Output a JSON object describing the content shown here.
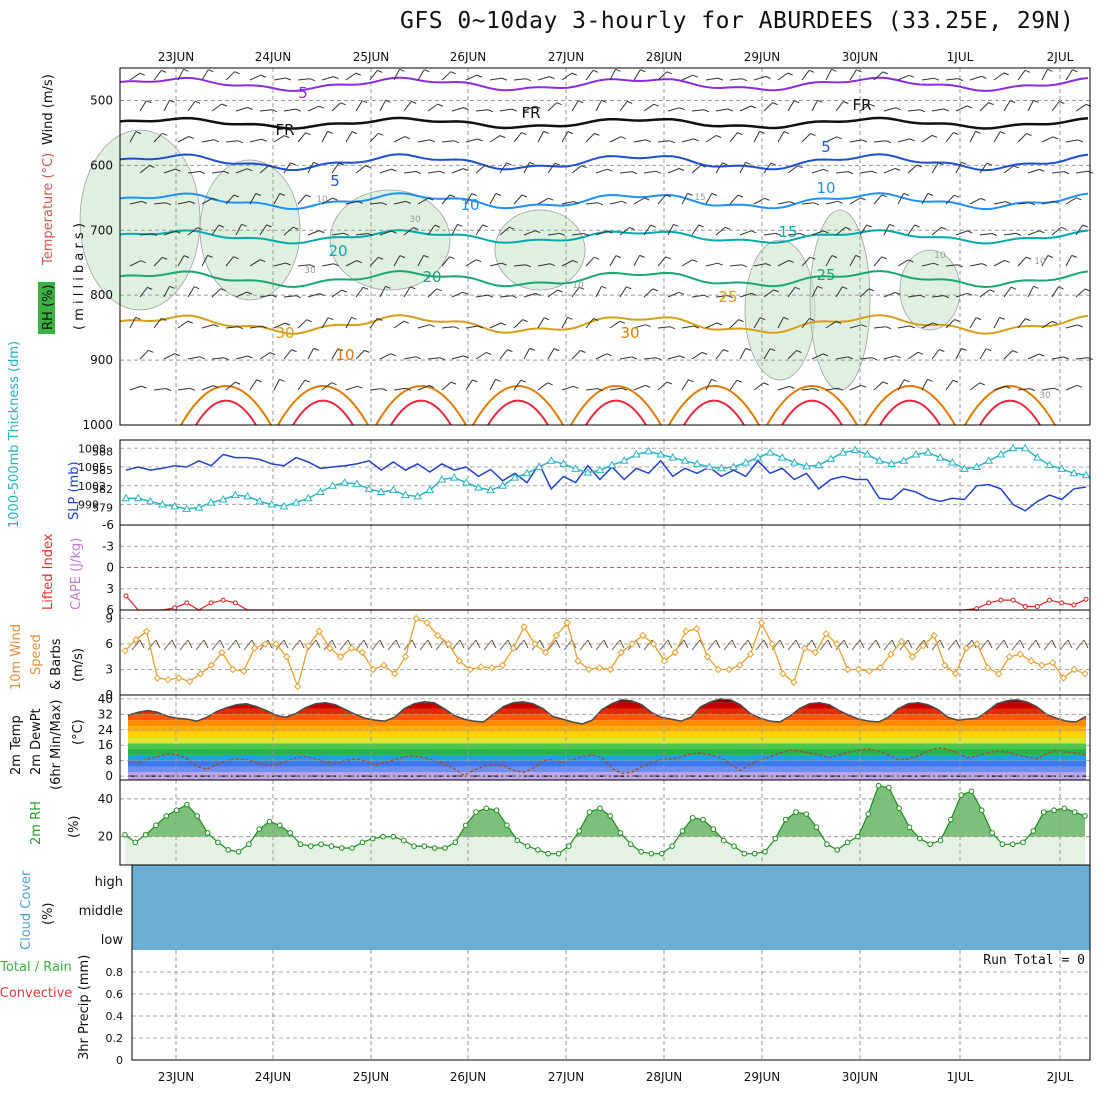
{
  "title": "GFS 0~10day 3-hourly for ABURDEES (33.25E, 29N)",
  "chart_data": [
    {
      "type": "line",
      "panel": "upper-air",
      "x_labels": [
        "23JUN",
        "24JUN",
        "25JUN",
        "26JUN",
        "27JUN",
        "28JUN",
        "29JUN",
        "30JUN",
        "1JUL",
        "2JUL"
      ],
      "ylabel_parts": [
        "RH (%)",
        "Temperature (°C)",
        "Wind (m/s)",
        "( m i l l i b a r s )"
      ],
      "ylim": [
        1000,
        450
      ],
      "y_ticks": [
        500,
        600,
        700,
        800,
        900,
        1000
      ],
      "grid": true,
      "contour_labels": [
        "5",
        "FR",
        "FR",
        "FR",
        "5",
        "5",
        "10",
        "10",
        "10",
        "15",
        "15",
        "20",
        "20",
        "25",
        "25",
        "30",
        "30",
        "10",
        "10",
        "10",
        "10",
        "30",
        "30",
        "30"
      ],
      "colors": {
        "temp_minus5": "#8a2be2",
        "freezing": "#111111",
        "temp5": "#1f4fd1",
        "temp10": "#1e90ff",
        "temp15": "#00aaaa",
        "temp20": "#1aa870",
        "temp25": "#d4a017",
        "temp30": "#e07b00",
        "temp35": "#e8293b",
        "rh": "#c9e6cb"
      }
    },
    {
      "type": "line",
      "panel": "slp-thickness",
      "ylabel_left": "1000-500mb Thickness (dm)",
      "ylabel_right": "SLP (mb)",
      "y_ticks_thickness": [
        579,
        582,
        585,
        588
      ],
      "y_ticks_slp": [
        999,
        1002,
        1005,
        1008
      ],
      "series": [
        {
          "name": "SLP",
          "color": "#2342c8",
          "values": [
            1004.5,
            1005.0,
            1004.5,
            1004.8,
            1005.2,
            1005.0,
            1006.0,
            1005.2,
            1007.0,
            1006.5,
            1006.5,
            1006.2,
            1005.5,
            1005.2,
            1006.5,
            1005.8,
            1004.8,
            1005.0,
            1005.2,
            1005.5,
            1006.0,
            1004.5,
            1005.8,
            1004.5,
            1005.5,
            1004.2,
            1005.5,
            1004.5,
            1005.0,
            1003.5,
            1004.6,
            1002.8,
            1004.0,
            1002.5,
            1005.5,
            1001.5,
            1003.5,
            1002.5,
            1005.2,
            1003.0,
            1005.0,
            1003.0,
            1004.8,
            1004.0,
            1006.0,
            1003.5,
            1004.8,
            1004.0,
            1005.0,
            1003.5,
            1004.5,
            1003.5,
            1006.0,
            1004.0,
            1004.8,
            1003.0,
            1004.0,
            1001.5,
            1003.0,
            1003.5,
            1003.0,
            1003.0,
            1000.0,
            999.8,
            1001.5,
            1001.0,
            1000.0,
            999.5,
            1000.0,
            999.8,
            1002.0,
            1002.2,
            1001.5,
            999.0,
            998.0,
            999.5,
            1000.5,
            999.8,
            1001.5,
            1001.8
          ]
        },
        {
          "name": "Thickness",
          "color": "#2bb5c0",
          "values": [
            580.5,
            580.5,
            580.0,
            579.5,
            579.2,
            578.8,
            579.0,
            579.8,
            580.3,
            581.0,
            580.8,
            580.0,
            579.5,
            579.2,
            579.8,
            580.5,
            581.5,
            582.5,
            583.0,
            582.8,
            582.0,
            581.5,
            581.8,
            581.0,
            580.8,
            581.8,
            583.5,
            583.8,
            583.0,
            582.2,
            581.8,
            582.5,
            583.8,
            584.5,
            585.5,
            586.5,
            586.0,
            585.2,
            584.6,
            585.0,
            585.8,
            586.5,
            587.5,
            588.0,
            587.5,
            587.0,
            586.5,
            586.0,
            585.5,
            585.3,
            585.5,
            586.2,
            587.0,
            587.8,
            587.0,
            586.2,
            585.6,
            585.8,
            586.8,
            587.8,
            588.2,
            587.5,
            586.5,
            586.0,
            586.5,
            587.5,
            587.8,
            587.0,
            586.2,
            585.2,
            585.5,
            586.5,
            587.5,
            588.5,
            588.5,
            587.0,
            585.8,
            585.2,
            584.5,
            584.2
          ]
        }
      ]
    },
    {
      "type": "line",
      "panel": "lifted-index",
      "ylabel_parts": [
        "Lifted Index",
        "CAPE (J/kg)"
      ],
      "ylim": [
        6,
        -6
      ],
      "y_ticks": [
        "-6",
        "-3",
        "0",
        "3",
        "6"
      ],
      "series": [
        {
          "name": "Lifted Index",
          "color": "#dd2222",
          "values": [
            4.0,
            6.0,
            6.0,
            6.0,
            5.7,
            5.0,
            6.0,
            5.0,
            4.6,
            5.0,
            6.0,
            6.0,
            6.0,
            6.0,
            6.0,
            6.0,
            6.0,
            6.0,
            6.0,
            6.0,
            6.0,
            6.0,
            6.0,
            6.0,
            6.0,
            6.0,
            6.0,
            6.0,
            6.0,
            6.0,
            6.0,
            6.0,
            6.0,
            6.0,
            6.0,
            6.0,
            6.0,
            6.0,
            6.0,
            6.0,
            6.0,
            6.0,
            6.0,
            6.0,
            6.0,
            6.0,
            6.0,
            6.0,
            6.0,
            6.0,
            6.0,
            6.0,
            6.0,
            6.0,
            6.0,
            6.0,
            6.0,
            6.0,
            6.0,
            6.0,
            6.0,
            6.0,
            6.0,
            6.0,
            6.0,
            6.0,
            6.0,
            6.0,
            6.0,
            6.0,
            5.8,
            5.0,
            4.6,
            4.6,
            5.5,
            5.5,
            4.6,
            5.0,
            5.3,
            4.5
          ]
        }
      ]
    },
    {
      "type": "line",
      "panel": "10m-wind",
      "ylabel_parts": [
        "10m Wind",
        "Speed",
        "& Barbs",
        "(m/s)"
      ],
      "ylim": [
        0,
        10
      ],
      "y_ticks": [
        0,
        3,
        6,
        9
      ],
      "series": [
        {
          "name": "Speed",
          "color": "#e8a030",
          "values": [
            5.2,
            6.5,
            7.5,
            2.0,
            1.8,
            2.0,
            1.6,
            2.5,
            3.5,
            5.0,
            3.0,
            2.8,
            5.5,
            6.0,
            6.0,
            4.5,
            1.0,
            5.8,
            7.5,
            5.5,
            4.5,
            5.5,
            5.0,
            3.0,
            3.5,
            2.5,
            4.5,
            9.0,
            8.5,
            7.0,
            6.0,
            4.0,
            3.0,
            3.3,
            3.2,
            3.5,
            5.5,
            8.0,
            6.0,
            5.0,
            7.0,
            8.5,
            4.0,
            3.0,
            3.2,
            3.0,
            5.0,
            6.0,
            7.0,
            6.0,
            4.0,
            5.0,
            7.5,
            7.8,
            4.5,
            3.0,
            3.0,
            3.5,
            4.8,
            8.5,
            6.0,
            2.5,
            1.5,
            5.5,
            5.0,
            7.2,
            6.0,
            3.0,
            3.0,
            2.8,
            3.2,
            4.8,
            6.3,
            4.5,
            5.8,
            7.0,
            3.5,
            2.5,
            5.5,
            6.0,
            3.2,
            2.5,
            4.5,
            4.8,
            4.0,
            3.5,
            3.8,
            2.0,
            3.0,
            2.5
          ]
        }
      ]
    },
    {
      "type": "area",
      "panel": "2m-temp",
      "ylabel_parts": [
        "2m Temp",
        "2m DewPt",
        "(6hr Min/Max)",
        "(°C)"
      ],
      "ylim": [
        -2,
        42
      ],
      "y_ticks": [
        0,
        8,
        16,
        24,
        32,
        40
      ],
      "series": [
        {
          "name": "2m Temp",
          "color": "#4a4a4a",
          "values": [
            31.5,
            33.0,
            34.0,
            33.0,
            31.0,
            30.0,
            29.5,
            28.5,
            30.5,
            33.5,
            35.5,
            37.0,
            37.5,
            36.0,
            34.0,
            31.5,
            30.5,
            32.5,
            35.5,
            37.5,
            38.0,
            37.0,
            34.5,
            32.0,
            30.0,
            29.0,
            28.5,
            30.5,
            35.0,
            37.5,
            38.5,
            38.0,
            35.0,
            31.5,
            29.5,
            28.5,
            28.0,
            32.0,
            36.0,
            38.0,
            38.5,
            37.5,
            35.0,
            31.0,
            29.5,
            28.0,
            27.0,
            29.0,
            34.5,
            37.5,
            39.5,
            39.0,
            37.0,
            33.0,
            30.5,
            29.5,
            28.5,
            30.5,
            36.0,
            38.5,
            40.0,
            39.5,
            37.0,
            32.5,
            30.0,
            28.5,
            28.0,
            31.0,
            35.0,
            37.5,
            38.0,
            37.0,
            34.0,
            31.5,
            29.5,
            28.5,
            28.0,
            30.5,
            35.0,
            37.5,
            38.0,
            37.0,
            34.5,
            30.5,
            29.0,
            29.5,
            30.0,
            33.5,
            37.5,
            39.0,
            39.5,
            38.5,
            36.0,
            32.0,
            30.0,
            28.5,
            28.0,
            31.0
          ]
        },
        {
          "name": "2m DewPt",
          "color": "#a0522d",
          "values": [
            8.0,
            7.0,
            9.0,
            10.0,
            11.5,
            11.0,
            9.0,
            5.0,
            3.5,
            6.0,
            8.0,
            9.0,
            8.5,
            7.0,
            5.5,
            6.0,
            7.5,
            9.5,
            10.0,
            9.0,
            7.5,
            6.5,
            8.0,
            9.0,
            8.0,
            6.0,
            7.0,
            8.5,
            10.0,
            10.5,
            9.5,
            8.0,
            6.5,
            4.0,
            0.5,
            3.0,
            5.0,
            6.0,
            5.5,
            3.0,
            2.0,
            4.0,
            8.0,
            8.5,
            7.0,
            8.5,
            10.0,
            11.0,
            9.5,
            4.0,
            1.5,
            2.0,
            5.0,
            7.0,
            8.5,
            9.0,
            10.0,
            11.5,
            12.0,
            11.0,
            9.5,
            6.0,
            3.0,
            6.0,
            8.5,
            10.0,
            12.0,
            13.5,
            13.0,
            12.0,
            11.0,
            9.5,
            11.0,
            12.5,
            13.5,
            14.0,
            13.0,
            11.0,
            8.5,
            9.0,
            10.5,
            13.0,
            14.5,
            14.0,
            12.0,
            9.5,
            10.5,
            12.0,
            13.0,
            12.5,
            11.0,
            10.0,
            9.0,
            11.5,
            13.5,
            12.5,
            12.0,
            11.0
          ]
        }
      ],
      "colors": {
        "bands": [
          "#b9a7e8",
          "#6f8ff0",
          "#3c78f0",
          "#1da0f0",
          "#28b04a",
          "#44cc44",
          "#dfe632",
          "#ffd200",
          "#ffb000",
          "#ff8a00",
          "#ff5a00",
          "#e52a00",
          "#c40000",
          "#8a0000"
        ]
      }
    },
    {
      "type": "area",
      "panel": "2m-rh",
      "ylabel_parts": [
        "2m RH",
        "(%)"
      ],
      "ylim": [
        5,
        50
      ],
      "y_ticks": [
        20,
        40
      ],
      "series": [
        {
          "name": "2m RH",
          "color": "#1e8c1e",
          "values": [
            21,
            17,
            21,
            26,
            31,
            34,
            37,
            31,
            22,
            17,
            13,
            12,
            16,
            24,
            28,
            26,
            22,
            16,
            15,
            16,
            15,
            14,
            14,
            17,
            19,
            20,
            20,
            18,
            15,
            15,
            14,
            14,
            17,
            26,
            33,
            35,
            34,
            26,
            18,
            15,
            13,
            11,
            11,
            15,
            23,
            33,
            35,
            31,
            22,
            16,
            12,
            11,
            11,
            15,
            23,
            30,
            29,
            24,
            18,
            15,
            11,
            11,
            12,
            19,
            29,
            33,
            32,
            25,
            16,
            13,
            17,
            20,
            32,
            47,
            46,
            35,
            25,
            19,
            16,
            18,
            29,
            42,
            44,
            34,
            22,
            16,
            16,
            17,
            23,
            33,
            34,
            35,
            33,
            31
          ]
        }
      ]
    },
    {
      "type": "heatmap",
      "panel": "cloud-cover",
      "ylabel_parts": [
        "Cloud Cover",
        "(%)"
      ],
      "levels": [
        "high",
        "middle",
        "low"
      ],
      "values": [
        0,
        0,
        0
      ],
      "colors": {
        "fill": "#6aaed6"
      }
    },
    {
      "type": "bar",
      "panel": "precip",
      "ylabel_parts": [
        "Total / Rain",
        "Convective",
        "3hr Precip (mm)"
      ],
      "ylim": [
        0,
        1
      ],
      "y_ticks": [
        "0",
        "0.2",
        "0.4",
        "0.6",
        "0.8"
      ],
      "run_total": "Run Total = 0",
      "values": []
    }
  ]
}
